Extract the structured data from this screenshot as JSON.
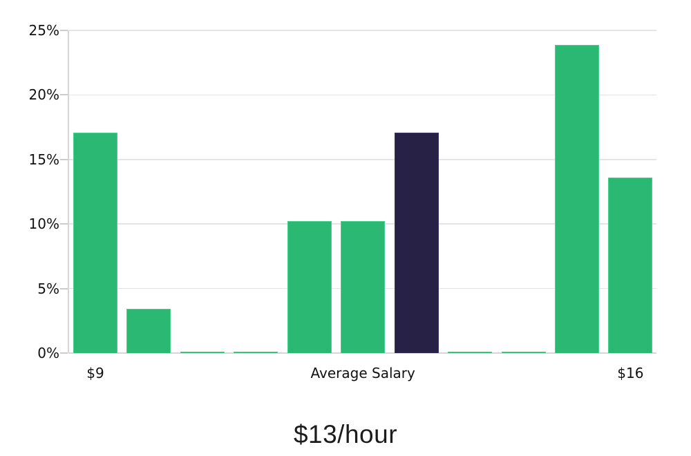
{
  "chart_data": {
    "type": "bar",
    "title": "$13/hour",
    "xlabel": "",
    "ylabel": "",
    "ylim": [
      0,
      25
    ],
    "grid": true,
    "legend": false,
    "y_ticks": [
      {
        "label": "0%",
        "value": 0
      },
      {
        "label": "5%",
        "value": 5
      },
      {
        "label": "10%",
        "value": 10
      },
      {
        "label": "15%",
        "value": 15
      },
      {
        "label": "20%",
        "value": 20
      },
      {
        "label": "25%",
        "value": 25
      }
    ],
    "x_ticks": [
      {
        "label": "$9",
        "bar_index": 0
      },
      {
        "label": "Average Salary",
        "bar_index": 5
      },
      {
        "label": "$16",
        "bar_index": 10
      }
    ],
    "values": [
      17.1,
      3.4,
      0.1,
      0.1,
      10.2,
      10.2,
      17.1,
      0.1,
      0.1,
      23.9,
      13.6
    ],
    "highlight_index": 6,
    "highlight_meaning": "Average Salary",
    "colors": {
      "bar_fill": "#2ab873",
      "bar_border": "#49d190",
      "highlight_fill": "#262145",
      "highlight_border": "#3a3464",
      "gridline": "#e4e4e4",
      "axis_line": "#d6d6d6",
      "tick_mark": "#cccccc",
      "label_text": "#111111",
      "title_text": "#1c1c1c"
    }
  }
}
